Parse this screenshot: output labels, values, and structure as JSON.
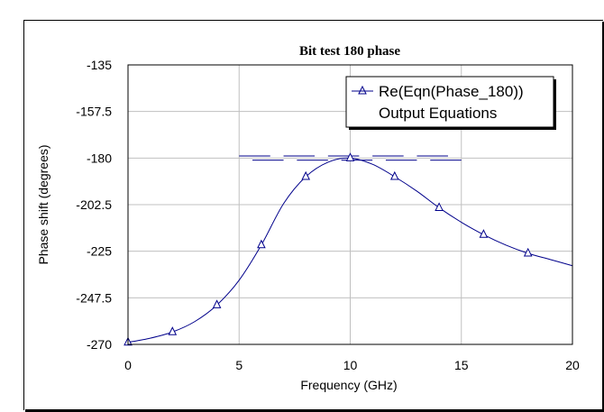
{
  "colors": {
    "series": "#00008b",
    "grid": "#c0c0c0",
    "axis": "#000000"
  },
  "chart_data": {
    "type": "line",
    "title": "Bit test 180 phase",
    "xlabel": "Frequency (GHz)",
    "ylabel": "Phase shift (degrees)",
    "xlim": [
      0,
      20
    ],
    "ylim": [
      -270,
      -135
    ],
    "xticks": [
      0,
      5,
      10,
      15,
      20
    ],
    "yticks": [
      -135,
      -157.5,
      -180,
      -202.5,
      -225,
      -247.5,
      -270
    ],
    "xtick_labels": [
      "0",
      "5",
      "10",
      "15",
      "20"
    ],
    "ytick_labels": [
      "-135",
      "-157.5",
      "-180",
      "-202.5",
      "-225",
      "-247.5",
      "-270"
    ],
    "grid": true,
    "legend": {
      "position": "top-right",
      "entries": [
        "Re(Eqn(Phase_180))",
        "Output Equations"
      ]
    },
    "series": [
      {
        "name": "Re(Eqn(Phase_180))",
        "marker": "triangle",
        "x": [
          0,
          1,
          2,
          3,
          4,
          5,
          6,
          7,
          8,
          9,
          10,
          11,
          12,
          13,
          14,
          15,
          16,
          17,
          18,
          19,
          20
        ],
        "values": [
          -269,
          -267,
          -264,
          -259,
          -251,
          -239,
          -222,
          -202,
          -189,
          -182,
          -180,
          -183,
          -189,
          -196,
          -204,
          -211,
          -217,
          -222,
          -226,
          -229,
          -232
        ],
        "marker_x": [
          0,
          2,
          4,
          6,
          8,
          10,
          12,
          14,
          16,
          18
        ]
      }
    ],
    "tolerance_lines": [
      {
        "x": [
          5,
          15
        ],
        "y": -179
      },
      {
        "x": [
          5,
          15
        ],
        "y": -181
      }
    ]
  }
}
